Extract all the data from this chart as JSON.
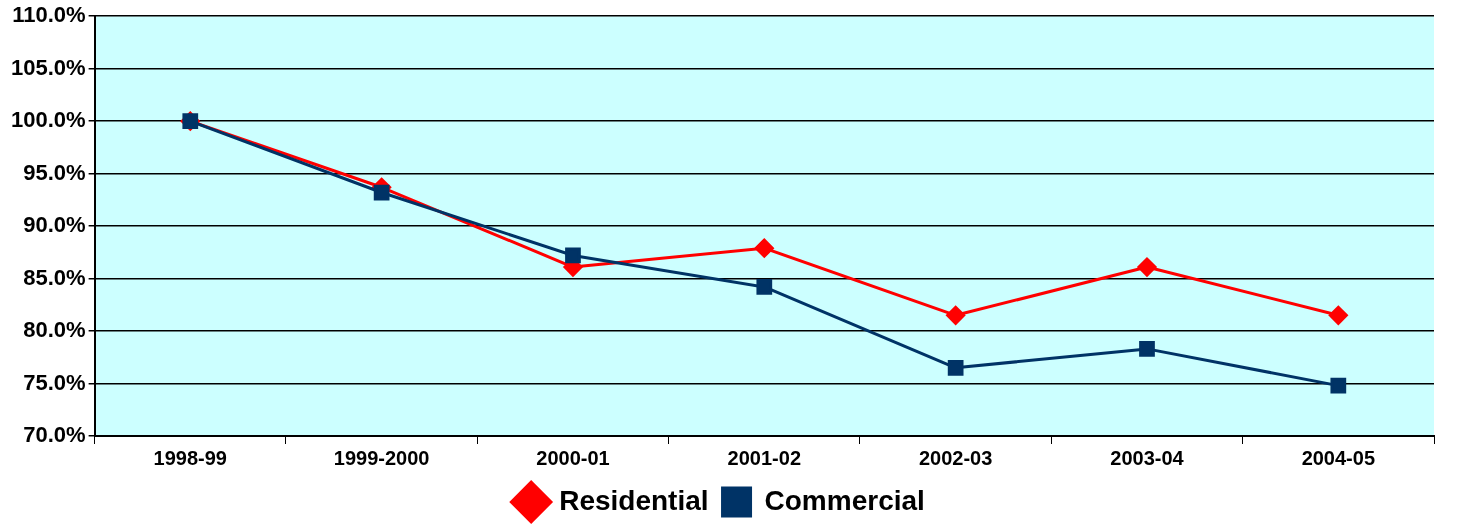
{
  "chart_data": {
    "type": "line",
    "categories": [
      "1998-99",
      "1999-2000",
      "2000-01",
      "2001-02",
      "2002-03",
      "2003-04",
      "2004-05"
    ],
    "series": [
      {
        "name": "Residential",
        "color": "#ff0000",
        "marker": "diamond",
        "values": [
          100,
          93.7,
          86.1,
          87.9,
          81.5,
          86.1,
          81.5
        ]
      },
      {
        "name": "Commercial",
        "color": "#003366",
        "marker": "square",
        "values": [
          100,
          93.2,
          87.2,
          84.2,
          76.5,
          78.3,
          74.8
        ]
      }
    ],
    "ylim": [
      70,
      110
    ],
    "yticks": [
      {
        "value": 70,
        "label": "70.0%"
      },
      {
        "value": 75,
        "label": "75.0%"
      },
      {
        "value": 80,
        "label": "80.0%"
      },
      {
        "value": 85,
        "label": "85.0%"
      },
      {
        "value": 90,
        "label": "90.0%"
      },
      {
        "value": 95,
        "label": "95.0%"
      },
      {
        "value": 100,
        "label": "100.0%"
      },
      {
        "value": 105,
        "label": "105.0%"
      },
      {
        "value": 110,
        "label": "110.0%"
      }
    ],
    "grid": "y",
    "legend": "bottom",
    "line_style": "solid"
  }
}
